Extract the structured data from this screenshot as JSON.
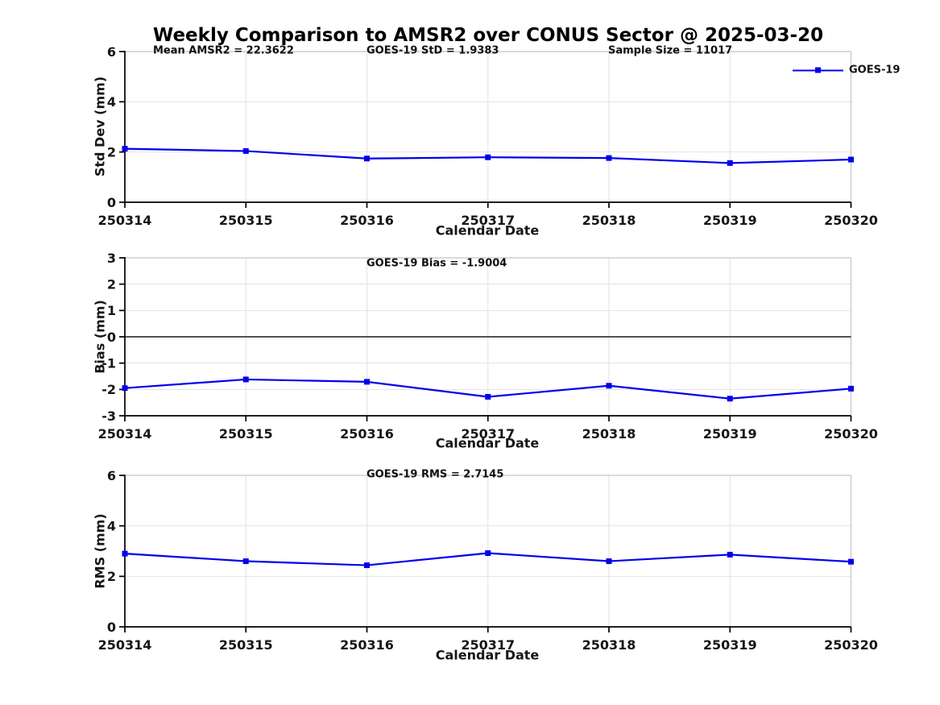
{
  "figure": {
    "title": "Weekly Comparison to AMSR2 over CONUS Sector @ 2025-03-20",
    "legend": {
      "label": "GOES-19"
    },
    "colors": {
      "series": "#0000EE",
      "grid": "#e2e2e2",
      "box_light": "#c4c4c4",
      "axis": "#000000",
      "zero_line": "#3a3a3a"
    }
  },
  "chart_data": [
    {
      "type": "line",
      "ylabel": "Std Dev (mm)",
      "xlabel": "Calendar Date",
      "categories": [
        "250314",
        "250315",
        "250316",
        "250317",
        "250318",
        "250319",
        "250320"
      ],
      "series": [
        {
          "name": "GOES-19",
          "values": [
            2.13,
            2.04,
            1.74,
            1.79,
            1.76,
            1.56,
            1.7
          ]
        }
      ],
      "ylim": [
        0,
        6
      ],
      "yticks": [
        0,
        2,
        4,
        6
      ],
      "grid": true,
      "zero_line": false,
      "legend_position": "top-right",
      "annotations": [
        "Mean AMSR2 = 22.3622",
        "GOES-19 StD = 1.9383",
        "Sample Size = 11017"
      ]
    },
    {
      "type": "line",
      "ylabel": "Bias (mm)",
      "xlabel": "Calendar Date",
      "categories": [
        "250314",
        "250315",
        "250316",
        "250317",
        "250318",
        "250319",
        "250320"
      ],
      "series": [
        {
          "name": "GOES-19",
          "values": [
            -1.95,
            -1.62,
            -1.71,
            -2.28,
            -1.86,
            -2.35,
            -1.97
          ]
        }
      ],
      "ylim": [
        -3,
        3
      ],
      "yticks": [
        -3,
        -2,
        -1,
        0,
        1,
        2,
        3
      ],
      "grid": true,
      "zero_line": true,
      "legend_position": "none",
      "annotations": [
        "GOES-19 Bias  = -1.9004"
      ]
    },
    {
      "type": "line",
      "ylabel": "RMS (mm)",
      "xlabel": "Calendar Date",
      "categories": [
        "250314",
        "250315",
        "250316",
        "250317",
        "250318",
        "250319",
        "250320"
      ],
      "series": [
        {
          "name": "GOES-19",
          "values": [
            2.9,
            2.6,
            2.44,
            2.92,
            2.6,
            2.86,
            2.58
          ]
        }
      ],
      "ylim": [
        0,
        6
      ],
      "yticks": [
        0,
        2,
        4,
        6
      ],
      "grid": true,
      "zero_line": false,
      "legend_position": "none",
      "annotations": [
        "GOES-19 RMS = 2.7145"
      ]
    }
  ]
}
